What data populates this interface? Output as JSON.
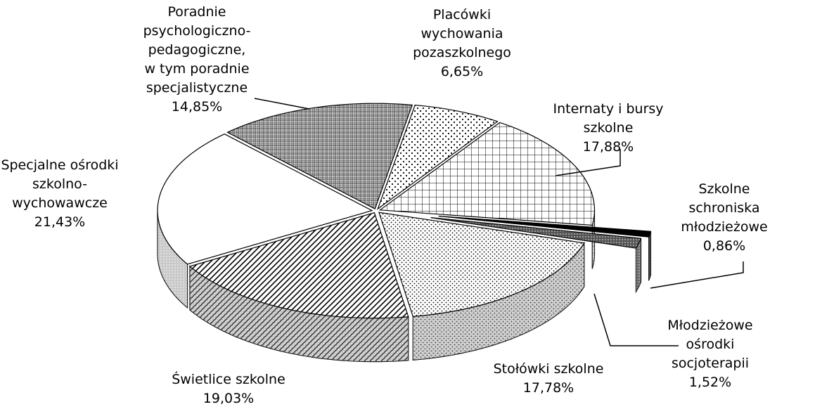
{
  "chart_data": {
    "type": "pie3d",
    "categories": [
      "Placówki\nwychowania\npozaszkolnego",
      "Internaty i bursy\nszkolne",
      "Szkolne schroniska\nmłodzieżowe",
      "Młodzieżowe\nośrodki socjoterapii",
      "Stołówki szkolne",
      "Świetlice szkolne",
      "Specjalne ośrodki\nszkolno-\nwychowawcze",
      "Poradnie\npsychologiczno-\npedagogiczne,\nw tym poradnie\nspecjalistyczne"
    ],
    "values": [
      6.65,
      17.88,
      0.86,
      1.52,
      17.78,
      19.03,
      21.43,
      14.85
    ],
    "value_labels": [
      "6,65%",
      "17,88%",
      "0,86%",
      "1,52%",
      "17,78%",
      "19,03%",
      "21,43%",
      "14,85%"
    ]
  }
}
